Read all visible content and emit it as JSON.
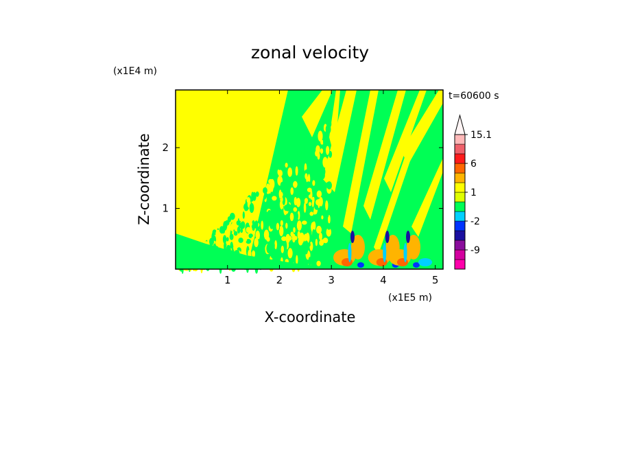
{
  "chart_data": {
    "type": "heatmap",
    "title": "zonal velocity",
    "xlabel": "X-coordinate",
    "ylabel": "Z-coordinate",
    "x_unit": "(x1E5 m)",
    "y_unit": "(x1E4 m)",
    "time_label": "t=60600 s",
    "xlim": [
      0,
      5.15
    ],
    "ylim": [
      0,
      2.95
    ],
    "x_ticks": [
      "1",
      "2",
      "3",
      "4",
      "5"
    ],
    "y_ticks": [
      "1",
      "2"
    ],
    "x_tick_values": [
      1,
      2,
      3,
      4,
      5
    ],
    "y_tick_values": [
      1,
      2
    ],
    "colorbar": {
      "levels": [
        -15,
        -12,
        -9,
        -6,
        -4,
        -2,
        -1,
        0,
        1,
        2,
        4,
        6,
        9,
        12,
        15.1
      ],
      "labels": [
        "15.1",
        "6",
        "1",
        "-2",
        "-9"
      ],
      "label_values": [
        15.1,
        6,
        1,
        -2,
        -9
      ],
      "colors": [
        "#ff00aa",
        "#d4009f",
        "#8a0d9c",
        "#1a0fa0",
        "#0033ff",
        "#00d0ff",
        "#00ff55",
        "#dfff00",
        "#ffff00",
        "#ffb400",
        "#ff6600",
        "#ff1a1a",
        "#f0606a",
        "#ffb8b8"
      ],
      "extend": "max"
    }
  }
}
